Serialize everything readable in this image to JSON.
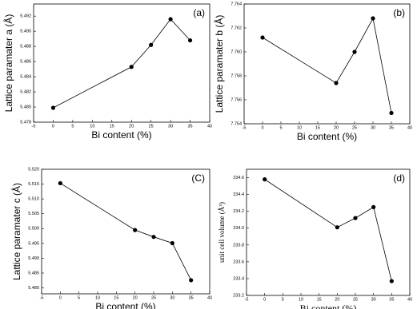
{
  "chart_data": [
    {
      "type": "line",
      "panel_label": "(a)",
      "xlabel": "Bi content (%)",
      "ylabel": "Lattice paramater a (Å)",
      "x": [
        0,
        20,
        25,
        30,
        35
      ],
      "values": [
        5.4799,
        5.4853,
        5.4882,
        5.4916,
        5.4888
      ],
      "color": "#000000",
      "xlim": [
        -5,
        40
      ],
      "xticks": [
        -5,
        0,
        5,
        10,
        15,
        20,
        25,
        30,
        35,
        40
      ],
      "ylim": [
        5.478,
        5.4936
      ],
      "yticks": [
        5.478,
        {
          "value": 5.48,
          "label": "5.480"
        },
        5.482,
        5.484,
        5.486,
        5.488,
        {
          "value": 5.49,
          "label": "5.490"
        },
        5.492
      ]
    },
    {
      "type": "line",
      "panel_label": "(b)",
      "xlabel": "Bi content (%)",
      "ylabel": "Lattice paramater b (Å)",
      "x": [
        0,
        20,
        25,
        30,
        35
      ],
      "values": [
        7.7612,
        7.7574,
        7.76,
        7.7628,
        7.7549
      ],
      "color": "#000000",
      "xlim": [
        -5,
        40
      ],
      "xticks": [
        -5,
        0,
        5,
        10,
        15,
        20,
        25,
        30,
        35,
        40
      ],
      "ylim": [
        7.754,
        7.764
      ],
      "yticks": [
        7.754,
        7.756,
        7.758,
        {
          "value": 7.76,
          "label": "7.760"
        },
        7.762,
        7.764
      ]
    },
    {
      "type": "line",
      "panel_label": "(C)",
      "xlabel": "Bi content (%)",
      "ylabel": "Lattice paramater c (Å)",
      "x": [
        0,
        20,
        25,
        30,
        35
      ],
      "values": [
        5.5153,
        5.4995,
        5.4972,
        5.4951,
        5.4826
      ],
      "color": "#000000",
      "xlim": [
        -5,
        40
      ],
      "xticks": [
        -5,
        0,
        5,
        10,
        15,
        20,
        25,
        30,
        35,
        40
      ],
      "ylim": [
        5.478,
        5.52
      ],
      "yticks": [
        {
          "value": 5.48,
          "label": "5.480"
        },
        5.485,
        {
          "value": 5.49,
          "label": "5.490"
        },
        5.495,
        {
          "value": 5.5,
          "label": "5.500"
        },
        5.505,
        {
          "value": 5.51,
          "label": "5.510"
        },
        5.515,
        {
          "value": 5.52,
          "label": "5.520"
        }
      ]
    },
    {
      "type": "line",
      "panel_label": "(d)",
      "xlabel": "Bi content (%)",
      "ylabel": "unit cell volume (Å³)",
      "x": [
        0,
        20,
        25,
        30,
        35
      ],
      "values": [
        234.58,
        234.01,
        234.12,
        234.25,
        233.37
      ],
      "color": "#000000",
      "xlim": [
        -5,
        40
      ],
      "xticks": [
        -5,
        0,
        5,
        10,
        15,
        20,
        25,
        30,
        35,
        40
      ],
      "ylim": [
        233.2,
        234.7
      ],
      "yticks": [
        233.2,
        233.4,
        233.6,
        233.8,
        {
          "value": 234,
          "label": "234.0"
        },
        234.2,
        234.4,
        234.6
      ]
    }
  ]
}
